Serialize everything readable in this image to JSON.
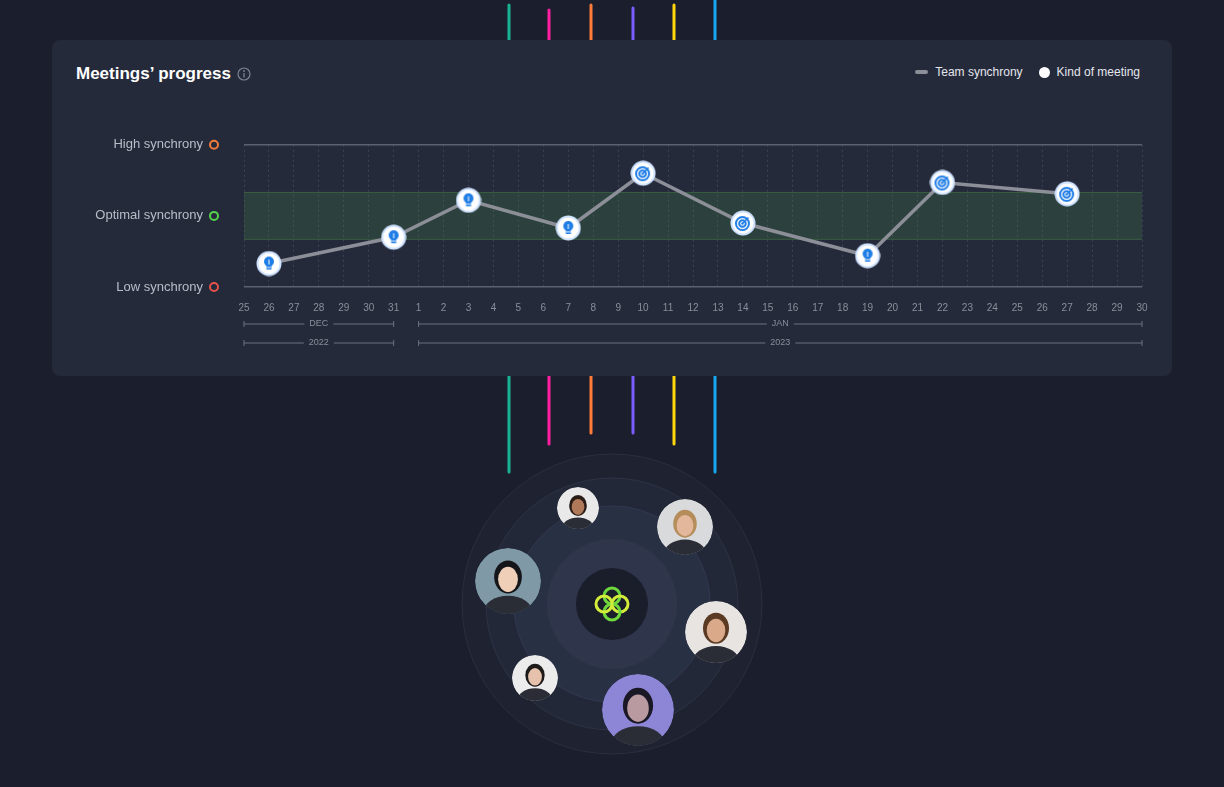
{
  "chart_data": {
    "type": "line",
    "title": "Meetings’ progress",
    "categories": [
      "25",
      "26",
      "27",
      "28",
      "29",
      "30",
      "31",
      "1",
      "2",
      "3",
      "4",
      "5",
      "6",
      "7",
      "8",
      "9",
      "10",
      "11",
      "12",
      "13",
      "14",
      "15",
      "16",
      "17",
      "18",
      "19",
      "20",
      "21",
      "22",
      "23",
      "24",
      "25",
      "26",
      "27",
      "28",
      "29",
      "30"
    ],
    "month_groups": [
      {
        "label": "DEC",
        "start": 0,
        "end": 6
      },
      {
        "label": "JAN",
        "start": 7,
        "end": 36
      }
    ],
    "year_groups": [
      {
        "label": "2022",
        "start": 0,
        "end": 6
      },
      {
        "label": "2023",
        "start": 7,
        "end": 36
      }
    ],
    "series": [
      {
        "name": "Team synchrony",
        "type": "line",
        "color": "#8c8f98",
        "values": [
          null,
          0.33,
          null,
          null,
          null,
          null,
          0.7,
          null,
          null,
          1.22,
          null,
          null,
          null,
          0.83,
          null,
          null,
          1.6,
          null,
          null,
          null,
          0.9,
          null,
          null,
          null,
          null,
          0.44,
          null,
          null,
          1.47,
          null,
          null,
          null,
          null,
          1.31,
          null,
          null,
          null
        ]
      },
      {
        "name": "Kind of meeting",
        "type": "scatter",
        "color": "#ffffff",
        "values": [
          null,
          0.33,
          null,
          null,
          null,
          null,
          0.7,
          null,
          null,
          1.22,
          null,
          null,
          null,
          0.83,
          null,
          null,
          1.6,
          null,
          null,
          null,
          0.9,
          null,
          null,
          null,
          null,
          0.44,
          null,
          null,
          1.47,
          null,
          null,
          null,
          null,
          1.31,
          null,
          null,
          null
        ],
        "markers": [
          null,
          "bulb",
          null,
          null,
          null,
          null,
          "bulb",
          null,
          null,
          "bulb",
          null,
          null,
          null,
          "bulb",
          null,
          null,
          "target",
          null,
          null,
          null,
          "target",
          null,
          null,
          null,
          null,
          "bulb",
          null,
          null,
          "target",
          null,
          null,
          null,
          null,
          "target",
          null,
          null,
          null
        ]
      }
    ],
    "ylim": [
      0,
      2
    ],
    "yticks": [
      {
        "value": 0,
        "label": "Low synchrony"
      },
      {
        "value": 1,
        "label": "Optimal synchrony"
      },
      {
        "value": 2,
        "label": "High synchrony"
      }
    ],
    "optimal_range": [
      0.67,
      1.33
    ],
    "grid": true,
    "legend": "top right"
  }
}
